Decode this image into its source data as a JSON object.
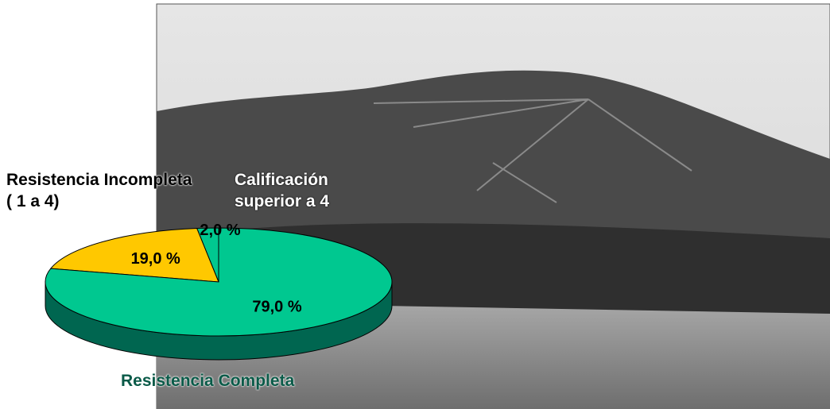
{
  "chart_data": {
    "type": "pie",
    "categories": [
      "Calificación superior a 4",
      "Resistencia Incompleta ( 1 a 4)",
      "Resistencia Completa"
    ],
    "values": [
      2,
      19,
      79
    ],
    "value_labels": [
      "2,0 %",
      "19,0 %",
      "79,0 %"
    ],
    "colors": [
      "#00c890",
      "#ffc800",
      "#00c890"
    ]
  }
}
